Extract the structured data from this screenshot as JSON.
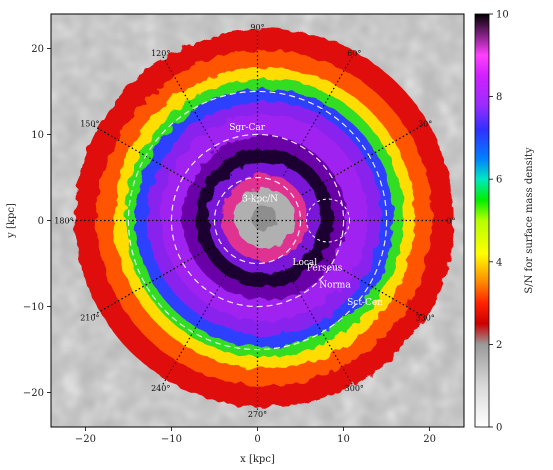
{
  "chart_data": {
    "type": "heatmap",
    "title": "",
    "xlabel": "x [kpc]",
    "ylabel": "y [kpc]",
    "xlim": [
      -24,
      24
    ],
    "ylim": [
      -24,
      24
    ],
    "x_ticks": [
      -20,
      -10,
      0,
      10,
      20
    ],
    "y_ticks": [
      -20,
      -10,
      0,
      10,
      20
    ],
    "x_tick_labels": [
      "−20",
      "−10",
      "0",
      "10",
      "20"
    ],
    "y_tick_labels": [
      "−20",
      "−10",
      "0",
      "10",
      "20"
    ],
    "colorbar": {
      "label": "S/N for surface mass density",
      "range": [
        0,
        10
      ],
      "ticks": [
        0,
        2,
        4,
        6,
        8,
        10
      ],
      "tick_labels": [
        "0",
        "2",
        "4",
        "6",
        "8",
        "10"
      ],
      "colors": [
        [
          0.0,
          "#ffffff"
        ],
        [
          0.1,
          "#d9d9d9"
        ],
        [
          0.2,
          "#9a9a9a"
        ],
        [
          0.25,
          "#cc0000"
        ],
        [
          0.3,
          "#ff2200"
        ],
        [
          0.35,
          "#ff8800"
        ],
        [
          0.42,
          "#ffff00"
        ],
        [
          0.5,
          "#b4ff00"
        ],
        [
          0.55,
          "#00ee00"
        ],
        [
          0.6,
          "#00e8c0"
        ],
        [
          0.65,
          "#0080ff"
        ],
        [
          0.72,
          "#3030ff"
        ],
        [
          0.78,
          "#9b2cff"
        ],
        [
          0.85,
          "#d020ff"
        ],
        [
          0.9,
          "#ff40ff"
        ],
        [
          1.0,
          "#000000"
        ]
      ]
    },
    "sun_position": [
      8.2,
      0
    ],
    "angle_lines": [
      {
        "angle": 0,
        "label": "0°"
      },
      {
        "angle": 30,
        "label": "30°"
      },
      {
        "angle": 60,
        "label": "60°"
      },
      {
        "angle": 90,
        "label": "90°"
      },
      {
        "angle": 120,
        "label": "120°"
      },
      {
        "angle": 150,
        "label": "150°"
      },
      {
        "angle": 180,
        "label": "180°"
      },
      {
        "angle": 210,
        "label": "210°"
      },
      {
        "angle": 240,
        "label": "240°"
      },
      {
        "angle": 270,
        "label": "270°"
      },
      {
        "angle": 300,
        "label": "300°"
      },
      {
        "angle": 330,
        "label": "330°"
      }
    ],
    "circles_kpc": [
      5,
      10,
      15
    ],
    "arm_labels": [
      {
        "text": "Sgr-Car",
        "x": -1.2,
        "y": 10.5
      },
      {
        "text": "3-kpc/N",
        "x": 0.3,
        "y": 2.2
      },
      {
        "text": "Local",
        "x": 5.5,
        "y": -5.2
      },
      {
        "text": "Perseus",
        "x": 7.8,
        "y": -5.8
      },
      {
        "text": "Norma",
        "x": 9.0,
        "y": -7.8
      },
      {
        "text": "Sct-Cen",
        "x": 12.5,
        "y": -9.8
      }
    ]
  }
}
